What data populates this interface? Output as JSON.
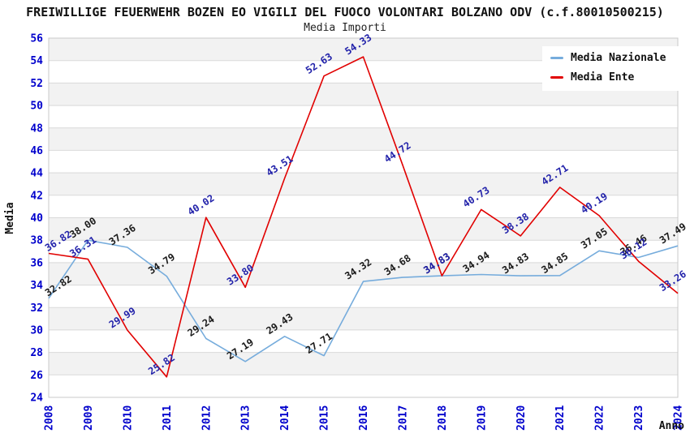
{
  "title": "FREIWILLIGE FEUERWEHR BOZEN EO VIGILI DEL FUOCO VOLONTARI BOLZANO ODV (c.f.80010500215)",
  "subtitle": "Media Importi",
  "legend": {
    "items": [
      {
        "label": "Media Nazionale",
        "color": "#76ACDC"
      },
      {
        "label": "Media Ente",
        "color": "#E10000"
      }
    ]
  },
  "axes": {
    "x_label": "Anno",
    "y_label": "Media",
    "y_min": 24,
    "y_max": 56,
    "y_tick_step": 2,
    "tick_color": "#0000CC"
  },
  "chart_data": {
    "type": "line",
    "title": "Media Importi",
    "categories": [
      "2008",
      "2009",
      "2010",
      "2011",
      "2012",
      "2013",
      "2014",
      "2015",
      "2016",
      "2017",
      "2018",
      "2019",
      "2020",
      "2021",
      "2022",
      "2023",
      "2024"
    ],
    "series": [
      {
        "name": "Media Nazionale",
        "color": "#76ACDC",
        "label_color": "#1A1A1A",
        "values": [
          32.82,
          38.0,
          37.36,
          34.79,
          29.24,
          27.19,
          29.43,
          27.71,
          34.32,
          34.68,
          34.83,
          34.94,
          34.83,
          34.85,
          37.05,
          36.46,
          37.49
        ]
      },
      {
        "name": "Media Ente",
        "color": "#E10000",
        "label_color": "#2222AA",
        "values": [
          36.82,
          36.31,
          29.99,
          25.82,
          40.02,
          33.8,
          43.51,
          52.63,
          54.33,
          44.72,
          34.83,
          40.73,
          38.38,
          42.71,
          40.19,
          36.12,
          33.26
        ]
      }
    ],
    "xlabel": "Anno",
    "ylabel": "Media",
    "ylim": [
      24,
      56
    ],
    "grid": "horizontal-stripes",
    "stripe_color": "#F2F2F2",
    "gridline_color": "#D9D9D9",
    "legend_position": "top-right"
  }
}
